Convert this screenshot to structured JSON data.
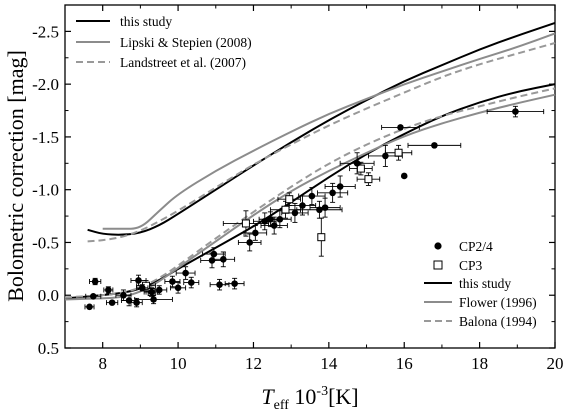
{
  "chart_data": {
    "type": "scatter",
    "xlabel_main": "T",
    "xlabel_sub": "eff",
    "xlabel_rest": " 10",
    "xlabel_sup": "-3",
    "xlabel_unit": "[K]",
    "ylabel": "Bolometric correction [mag]",
    "xlim": [
      7,
      20
    ],
    "ylim": [
      0.5,
      -2.75
    ],
    "x_ticks": [
      8,
      10,
      12,
      14,
      16,
      18,
      20
    ],
    "x_tick_labels": [
      "8",
      "10",
      "12",
      "14",
      "16",
      "18",
      "20"
    ],
    "y_ticks": [
      0.5,
      0.0,
      -0.5,
      -1.0,
      -1.5,
      -2.0,
      -2.5
    ],
    "y_tick_labels": [
      "0.5",
      "0.0",
      "-0.5",
      "-1.0",
      "-1.5",
      "-2.0",
      "-2.5"
    ],
    "legend_top": [
      {
        "label": "this study",
        "style": "solid-black"
      },
      {
        "label": "Lipski & Stepien (2008)",
        "style": "solid-gray"
      },
      {
        "label": "Landstreet et al. (2007)",
        "style": "dashed-gray"
      }
    ],
    "legend_bottom": [
      {
        "label": "CP2/4",
        "style": "filled-circle"
      },
      {
        "label": "CP3",
        "style": "open-square"
      },
      {
        "label": "this study",
        "style": "solid-black"
      },
      {
        "label": "Flower (1996)",
        "style": "solid-gray"
      },
      {
        "label": "Balona (1994)",
        "style": "dashed-gray"
      }
    ],
    "colors": {
      "black": "#000000",
      "gray": "#8c8c8c",
      "dashed": "#999999"
    },
    "series_lines": [
      {
        "name": "this study",
        "group": "upper",
        "style": "solid-black",
        "x": [
          7.6,
          8.0,
          8.5,
          9.0,
          9.5,
          10,
          11,
          12,
          13,
          14,
          15,
          16,
          17,
          18,
          19,
          20
        ],
        "y": [
          -0.62,
          -0.58,
          -0.57,
          -0.59,
          -0.66,
          -0.77,
          -1.0,
          -1.23,
          -1.45,
          -1.66,
          -1.85,
          -2.03,
          -2.18,
          -2.33,
          -2.46,
          -2.58
        ]
      },
      {
        "name": "Lipski & Stepien (2008)",
        "group": "upper",
        "style": "solid-gray",
        "x": [
          8.0,
          8.5,
          9.0,
          9.5,
          10,
          11,
          12,
          13,
          14,
          15,
          16,
          17,
          18,
          19,
          20
        ],
        "y": [
          -0.63,
          -0.63,
          -0.63,
          -0.8,
          -0.96,
          -1.18,
          -1.37,
          -1.55,
          -1.72,
          -1.86,
          -2.0,
          -2.12,
          -2.24,
          -2.35,
          -2.48
        ]
      },
      {
        "name": "Landstreet et al. (2007)",
        "group": "upper",
        "style": "dashed-gray",
        "x": [
          7.6,
          8.0,
          8.5,
          9.0,
          9.5,
          10,
          11,
          12,
          13,
          14,
          15,
          16,
          17,
          18,
          19,
          20
        ],
        "y": [
          -0.51,
          -0.52,
          -0.55,
          -0.61,
          -0.7,
          -0.8,
          -1.02,
          -1.24,
          -1.43,
          -1.61,
          -1.77,
          -1.92,
          -2.07,
          -2.19,
          -2.29,
          -2.39
        ]
      },
      {
        "name": "this study",
        "group": "lower",
        "style": "solid-black",
        "x": [
          7.0,
          8.0,
          8.5,
          9.0,
          9.5,
          10,
          11,
          12,
          13,
          14,
          15,
          16,
          17,
          18,
          19,
          20
        ],
        "y": [
          0.03,
          0.0,
          -0.02,
          -0.06,
          -0.14,
          -0.25,
          -0.45,
          -0.65,
          -0.88,
          -1.12,
          -1.34,
          -1.53,
          -1.7,
          -1.83,
          -1.93,
          -2.0
        ]
      },
      {
        "name": "Flower (1996)",
        "group": "lower",
        "style": "solid-gray",
        "x": [
          7.0,
          8.0,
          8.5,
          9.0,
          9.5,
          10,
          11,
          12,
          13,
          14,
          15,
          16,
          17,
          18,
          19,
          20
        ],
        "y": [
          0.04,
          0.03,
          0.02,
          -0.03,
          -0.13,
          -0.26,
          -0.51,
          -0.76,
          -0.99,
          -1.18,
          -1.35,
          -1.51,
          -1.63,
          -1.73,
          -1.82,
          -1.9
        ]
      },
      {
        "name": "Balona (1994)",
        "group": "lower",
        "style": "dashed-gray",
        "x": [
          7.0,
          8.0,
          8.5,
          9.0,
          9.5,
          10,
          11,
          12,
          13,
          14,
          15,
          16,
          17,
          18,
          19,
          20
        ],
        "y": [
          0.02,
          0.0,
          -0.02,
          -0.07,
          -0.16,
          -0.28,
          -0.54,
          -0.79,
          -1.03,
          -1.25,
          -1.43,
          -1.58,
          -1.7,
          -1.79,
          -1.88,
          -1.96
        ]
      }
    ],
    "points_cp24": [
      {
        "x": 7.65,
        "y": 0.11,
        "xerr": 0.12,
        "yerr": 0.0
      },
      {
        "x": 7.8,
        "y": -0.13,
        "xerr": 0.15,
        "yerr": 0.03
      },
      {
        "x": 7.75,
        "y": 0.01,
        "xerr": 0.2,
        "yerr": 0.0
      },
      {
        "x": 8.15,
        "y": -0.05,
        "xerr": 0.12,
        "yerr": 0.03
      },
      {
        "x": 8.25,
        "y": 0.07,
        "xerr": 0.15,
        "yerr": 0.0
      },
      {
        "x": 8.55,
        "y": 0.0,
        "xerr": 0.2,
        "yerr": 0.05
      },
      {
        "x": 8.7,
        "y": 0.05,
        "xerr": 0.2,
        "yerr": 0.05
      },
      {
        "x": 8.9,
        "y": 0.07,
        "xerr": 0.15,
        "yerr": 0.04
      },
      {
        "x": 8.95,
        "y": -0.14,
        "xerr": 0.2,
        "yerr": 0.05
      },
      {
        "x": 9.05,
        "y": -0.07,
        "xerr": 0.15,
        "yerr": 0.03
      },
      {
        "x": 9.3,
        "y": -0.03,
        "xerr": 0.15,
        "yerr": 0.04
      },
      {
        "x": 9.35,
        "y": 0.04,
        "xerr": 0.5,
        "yerr": 0.04
      },
      {
        "x": 9.5,
        "y": -0.05,
        "xerr": 0.2,
        "yerr": 0.04
      },
      {
        "x": 9.85,
        "y": -0.13,
        "xerr": 0.2,
        "yerr": 0.05
      },
      {
        "x": 10.0,
        "y": -0.07,
        "xerr": 0.2,
        "yerr": 0.05
      },
      {
        "x": 10.2,
        "y": -0.21,
        "xerr": 0.25,
        "yerr": 0.06
      },
      {
        "x": 10.35,
        "y": -0.12,
        "xerr": 0.2,
        "yerr": 0.05
      },
      {
        "x": 10.9,
        "y": -0.33,
        "xerr": 0.3,
        "yerr": 0.07
      },
      {
        "x": 10.95,
        "y": -0.39,
        "xerr": 0.3,
        "yerr": 0.06
      },
      {
        "x": 11.2,
        "y": -0.34,
        "xerr": 0.3,
        "yerr": 0.07
      },
      {
        "x": 11.1,
        "y": -0.1,
        "xerr": 0.25,
        "yerr": 0.05
      },
      {
        "x": 11.5,
        "y": -0.11,
        "xerr": 0.25,
        "yerr": 0.05
      },
      {
        "x": 11.9,
        "y": -0.5,
        "xerr": 0.3,
        "yerr": 0.08
      },
      {
        "x": 12.05,
        "y": -0.59,
        "xerr": 0.3,
        "yerr": 0.07
      },
      {
        "x": 12.3,
        "y": -0.7,
        "xerr": 0.3,
        "yerr": 0.08
      },
      {
        "x": 12.45,
        "y": -0.72,
        "xerr": 0.3,
        "yerr": 0.07
      },
      {
        "x": 12.55,
        "y": -0.66,
        "xerr": 0.35,
        "yerr": 0.08
      },
      {
        "x": 12.7,
        "y": -0.72,
        "xerr": 0.3,
        "yerr": 0.08
      },
      {
        "x": 13.1,
        "y": -0.78,
        "xerr": 0.35,
        "yerr": 0.09
      },
      {
        "x": 13.3,
        "y": -0.85,
        "xerr": 0.35,
        "yerr": 0.09
      },
      {
        "x": 13.55,
        "y": -0.94,
        "xerr": 0.35,
        "yerr": 0.08
      },
      {
        "x": 13.75,
        "y": -0.81,
        "xerr": 0.6,
        "yerr": 0.08
      },
      {
        "x": 13.9,
        "y": -0.83,
        "xerr": 0.4,
        "yerr": 0.09
      },
      {
        "x": 14.1,
        "y": -0.97,
        "xerr": 0.4,
        "yerr": 0.09
      },
      {
        "x": 14.3,
        "y": -1.03,
        "xerr": 0.4,
        "yerr": 0.1
      },
      {
        "x": 14.75,
        "y": -1.25,
        "xerr": 0.45,
        "yerr": 0.1
      },
      {
        "x": 15.5,
        "y": -1.32,
        "xerr": 0.45,
        "yerr": 0.1
      },
      {
        "x": 15.9,
        "y": -1.59,
        "xerr": 0.5,
        "yerr": 0.0
      },
      {
        "x": 16.0,
        "y": -1.13,
        "xerr": 0.0,
        "yerr": 0.0
      },
      {
        "x": 16.8,
        "y": -1.42,
        "xerr": 0.7,
        "yerr": 0.0
      },
      {
        "x": 18.95,
        "y": -1.74,
        "xerr": 0.75,
        "yerr": 0.05
      }
    ],
    "points_cp3": [
      {
        "x": 9.15,
        "y": -0.09,
        "xerr": 0.25,
        "yerr": 0.05
      },
      {
        "x": 9.3,
        "y": -0.03,
        "xerr": 0.2,
        "yerr": 0.04
      },
      {
        "x": 11.8,
        "y": -0.68,
        "xerr": 0.6,
        "yerr": 0.12
      },
      {
        "x": 12.85,
        "y": -0.81,
        "xerr": 0.4,
        "yerr": 0.08
      },
      {
        "x": 12.95,
        "y": -0.91,
        "xerr": 0.3,
        "yerr": 0.06
      },
      {
        "x": 13.8,
        "y": -0.55,
        "xerr": 0.0,
        "yerr": 0.18
      },
      {
        "x": 14.85,
        "y": -1.2,
        "xerr": 0.3,
        "yerr": 0.06
      },
      {
        "x": 15.05,
        "y": -1.1,
        "xerr": 0.3,
        "yerr": 0.06
      },
      {
        "x": 15.85,
        "y": -1.35,
        "xerr": 0.35,
        "yerr": 0.07
      }
    ]
  }
}
